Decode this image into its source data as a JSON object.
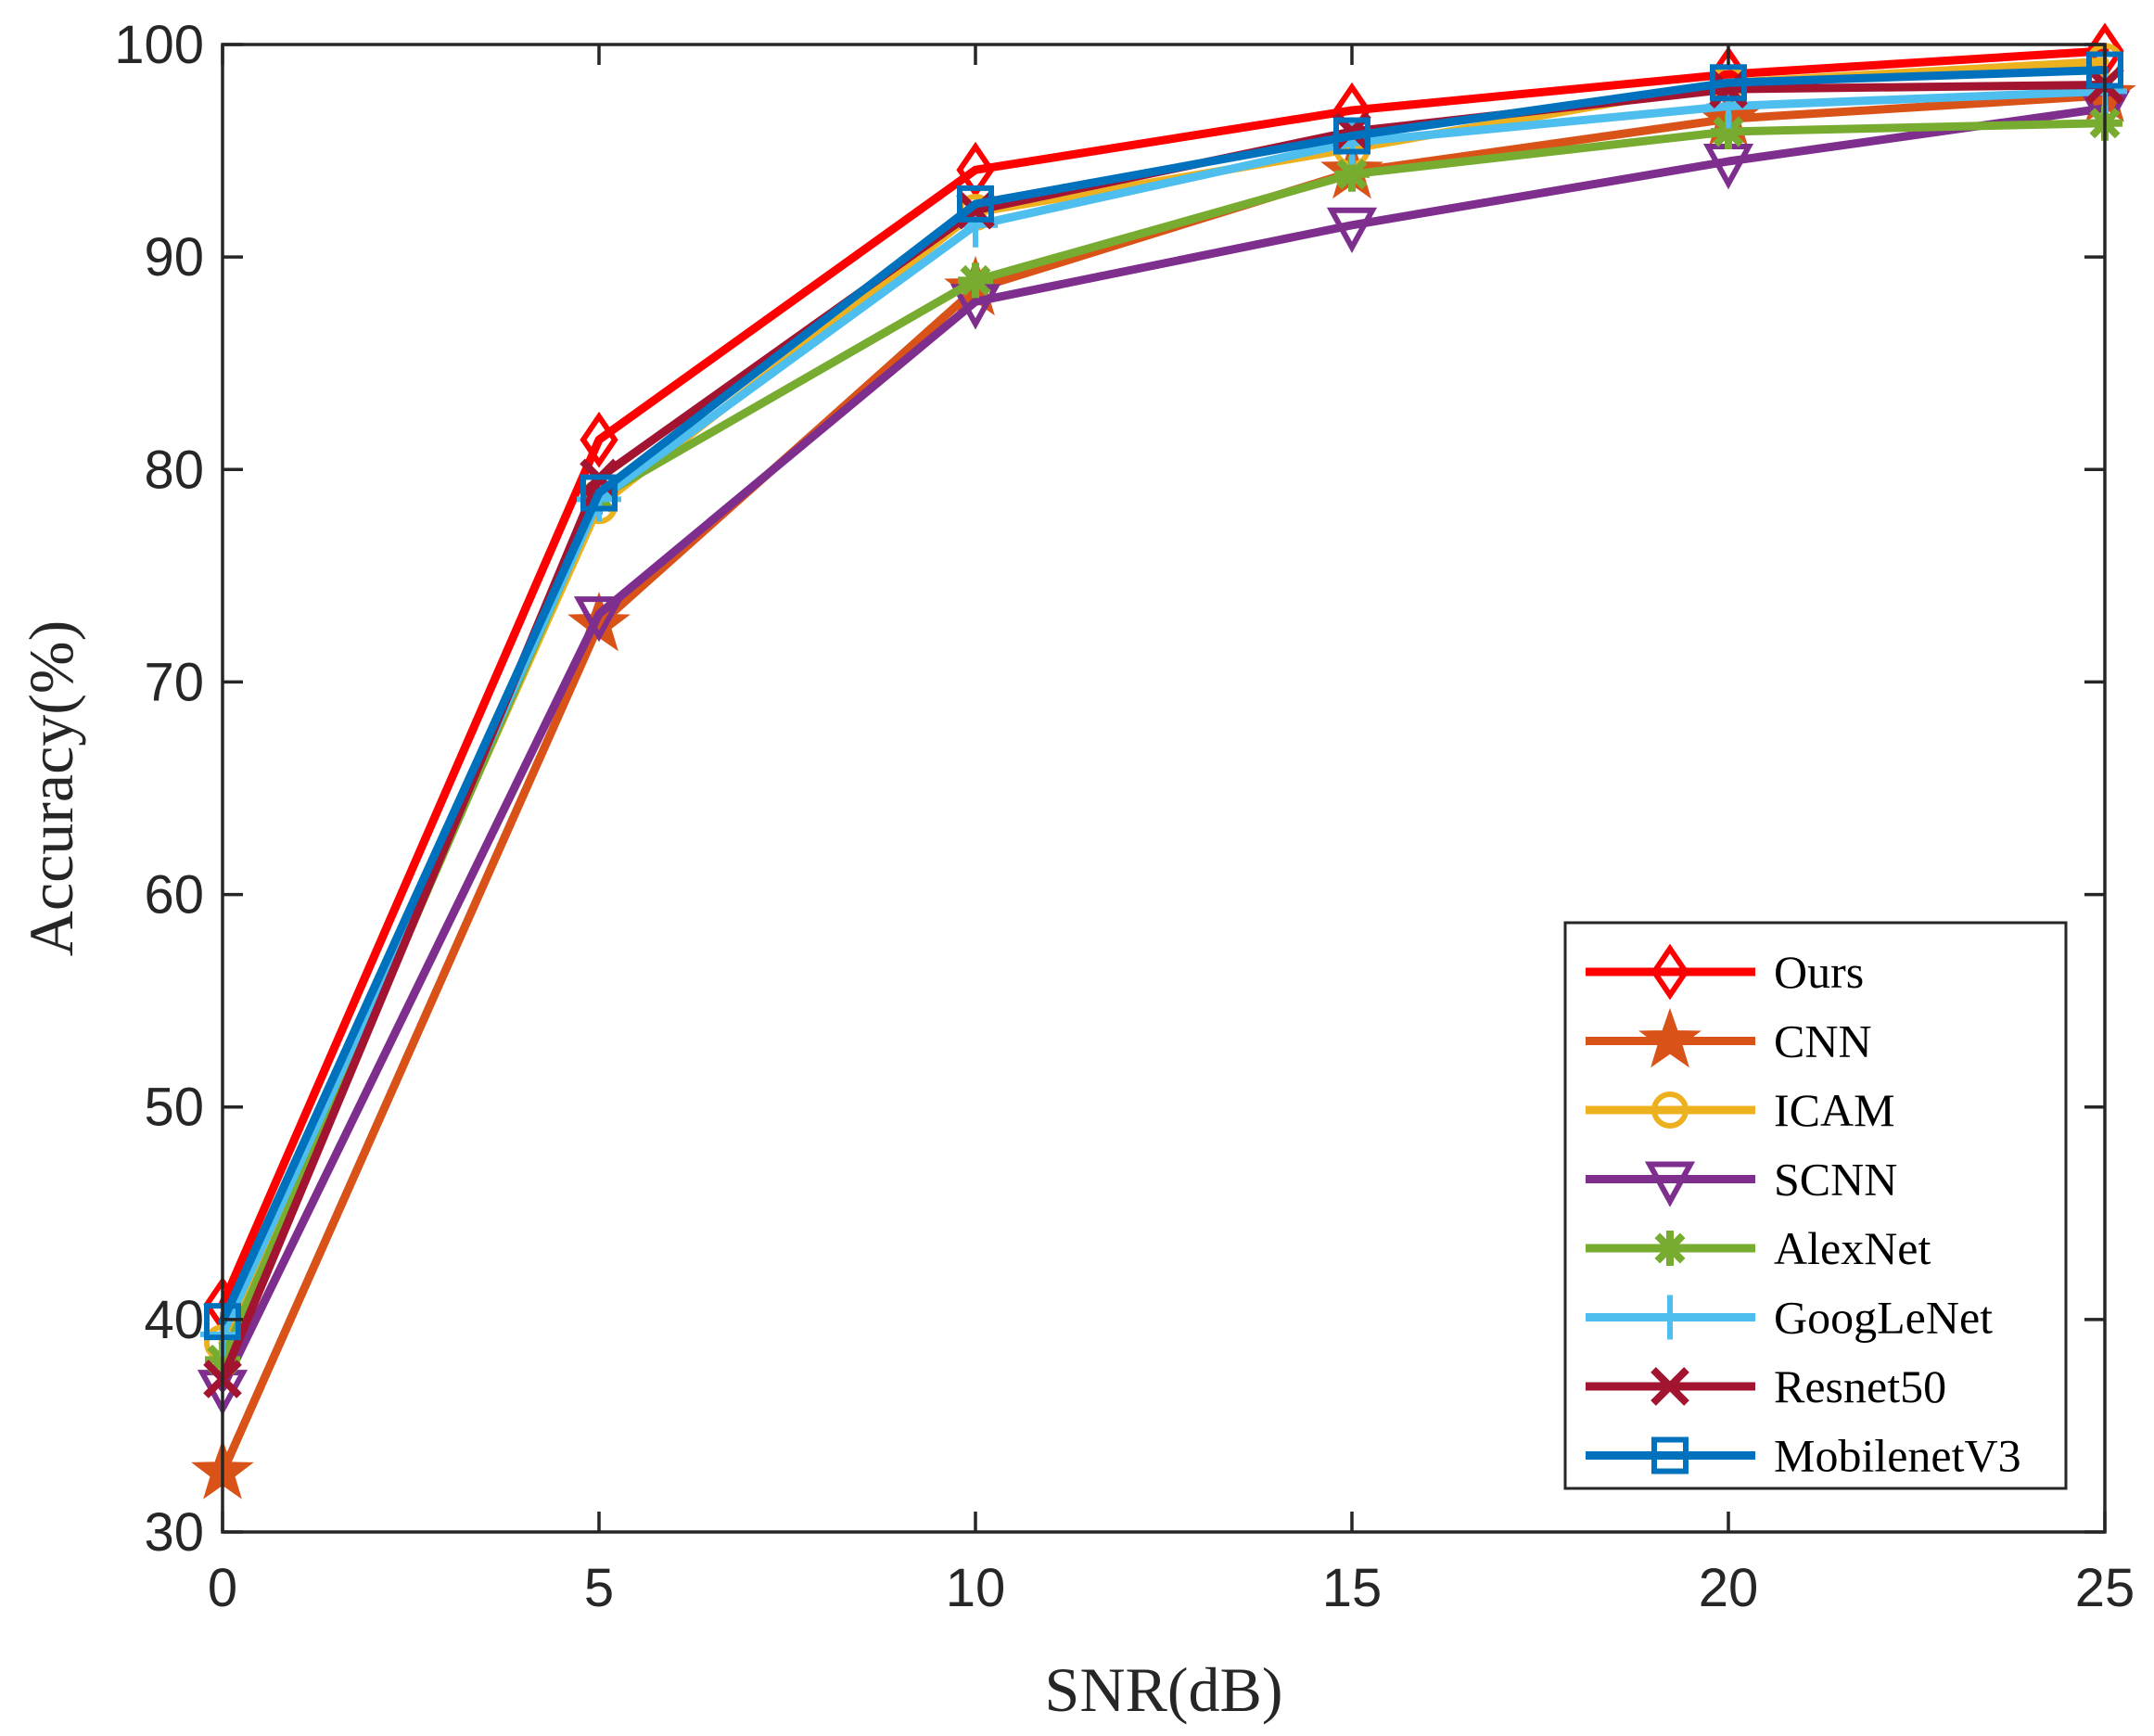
{
  "chart_data": {
    "type": "line",
    "title": "",
    "xlabel": "SNR(dB)",
    "ylabel": "Accuracy(%)",
    "x": [
      0,
      5,
      10,
      15,
      20,
      25
    ],
    "xticks": [
      "0",
      "5",
      "10",
      "15",
      "20",
      "25"
    ],
    "yticks": [
      "30",
      "40",
      "50",
      "60",
      "70",
      "80",
      "90",
      "100"
    ],
    "xlim": [
      0,
      25
    ],
    "ylim": [
      30,
      100
    ],
    "grid": false,
    "legend_position": "bottom-right",
    "series": [
      {
        "name": "Ours",
        "color": "#FF0000",
        "marker": "diamond",
        "values": [
          40.7,
          81.4,
          94.1,
          96.9,
          98.6,
          99.7
        ]
      },
      {
        "name": "CNN",
        "color": "#D95319",
        "marker": "star",
        "values": [
          32.8,
          72.7,
          88.5,
          94.0,
          96.5,
          97.6
        ]
      },
      {
        "name": "ICAM",
        "color": "#EDB120",
        "marker": "circle",
        "values": [
          38.9,
          78.3,
          92.1,
          95.1,
          98.2,
          99.2
        ]
      },
      {
        "name": "SCNN",
        "color": "#7E2F8E",
        "marker": "triangle-down",
        "values": [
          36.8,
          73.2,
          87.9,
          91.5,
          94.5,
          97.0
        ]
      },
      {
        "name": "AlexNet",
        "color": "#77AC30",
        "marker": "asterisk",
        "values": [
          38.1,
          78.7,
          88.9,
          93.9,
          95.9,
          96.3
        ]
      },
      {
        "name": "GoogLeNet",
        "color": "#4DBEEE",
        "marker": "plus",
        "values": [
          39.3,
          78.6,
          91.5,
          95.4,
          97.1,
          97.8
        ]
      },
      {
        "name": "Resnet50",
        "color": "#A2142F",
        "marker": "x",
        "values": [
          37.2,
          79.6,
          92.2,
          95.9,
          97.9,
          98.1
        ]
      },
      {
        "name": "MobilenetV3",
        "color": "#0072BD",
        "marker": "square",
        "values": [
          39.9,
          78.9,
          92.5,
          95.7,
          98.2,
          98.8
        ]
      }
    ]
  }
}
